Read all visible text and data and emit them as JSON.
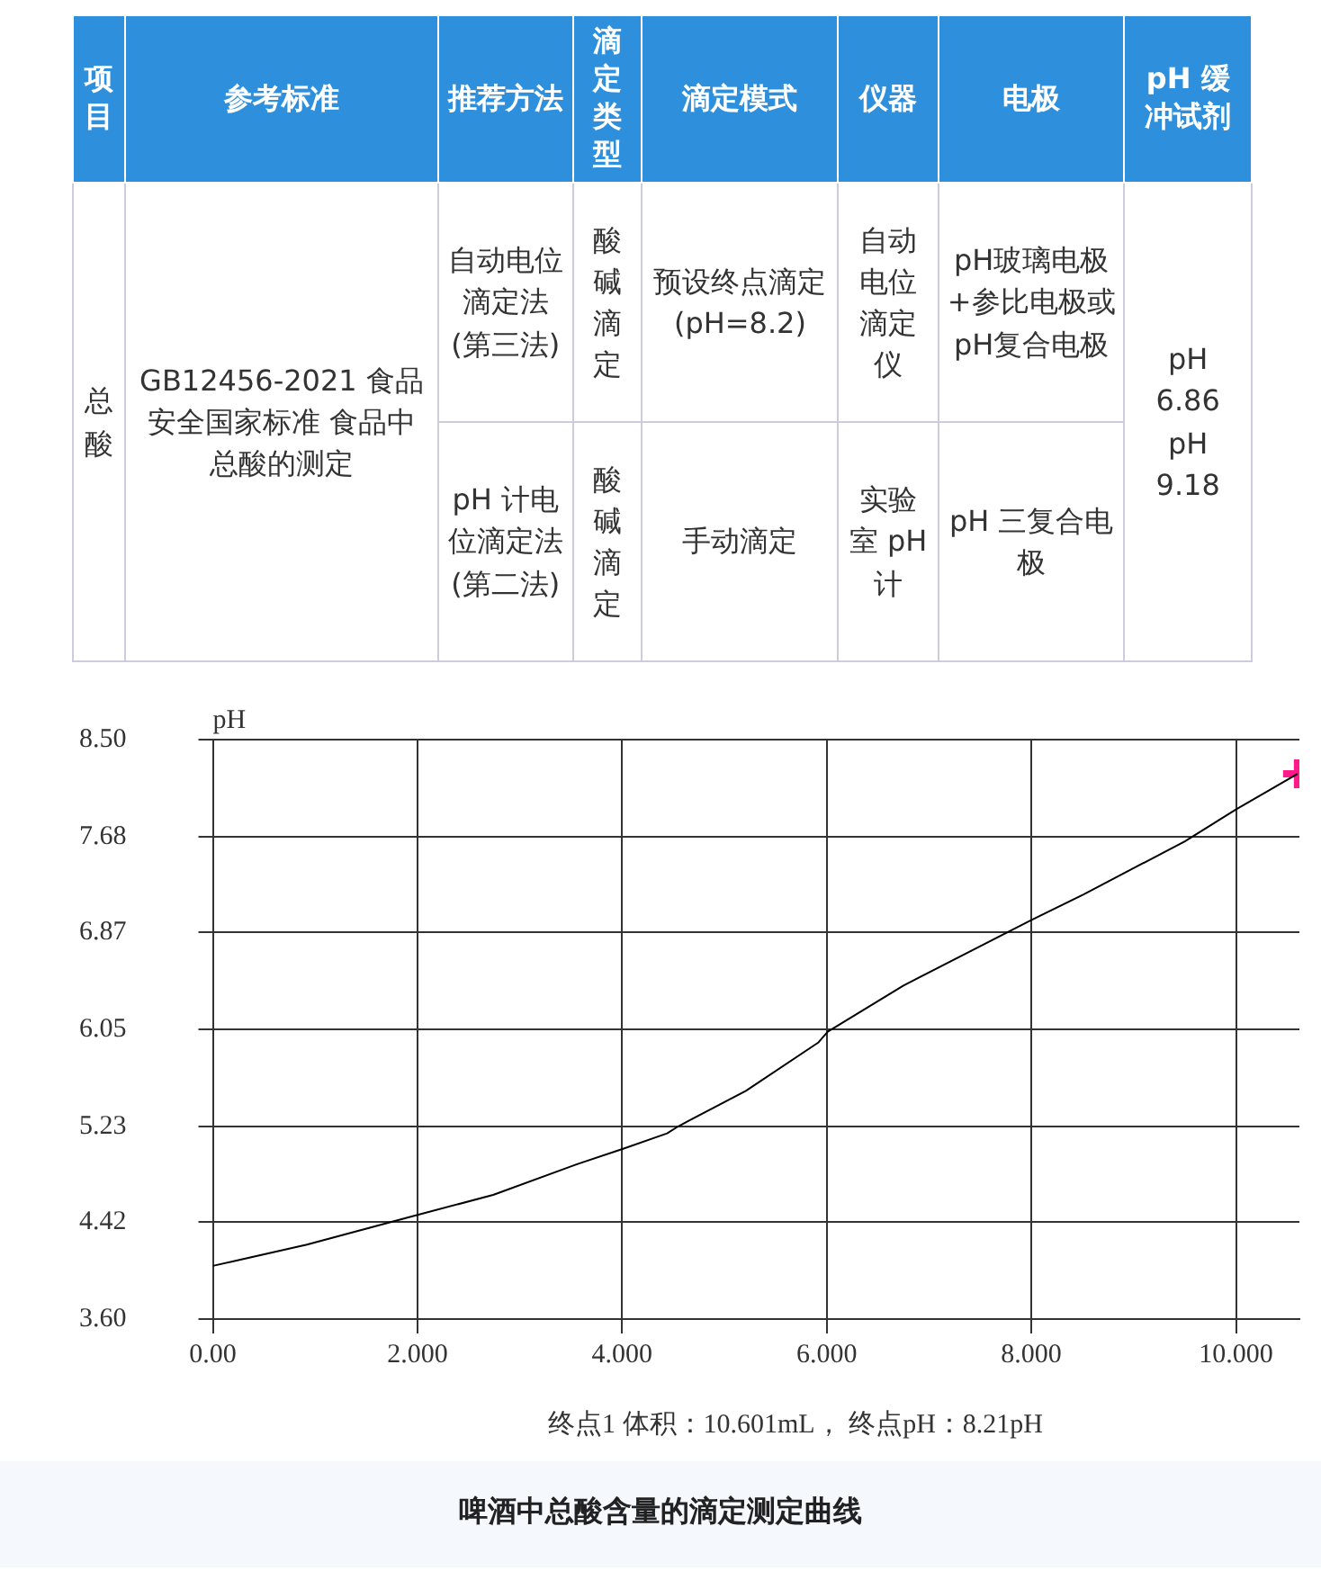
{
  "chart_data": [
    {
      "type": "other",
      "categories": [
        "项目",
        "参考标准",
        "推荐方法",
        "滴定类型",
        "滴定模式",
        "仪器",
        "电极",
        "pH 缓冲试剂"
      ],
      "cells": [
        [
          "总酸",
          "GB12456-2021 食品安全国家标准 食品中总酸的测定",
          "自动电位滴定法(第三法)",
          "酸碱滴定",
          "预设终点滴定(pH=8.2)",
          "自动电位滴定仪",
          "pH玻璃电极+参比电极或pH复合电极",
          "pH 6.86 pH 9.18"
        ],
        [
          null,
          null,
          "pH 计电位滴定法(第二法)",
          "酸碱滴定",
          "手动滴定",
          "实验室 pH 计",
          "pH 三复合电极",
          null
        ]
      ]
    },
    {
      "type": "line",
      "title": "啤酒中总酸含量的滴定测定曲线",
      "ylabel": "pH",
      "annotations": [
        "终点1 体积：10.601mL， 终点pH：8.21pH"
      ],
      "xlim": [
        0,
        10.62
      ],
      "xticks": [
        {
          "value": 0,
          "label": "0.00"
        },
        {
          "value": 2,
          "label": "2.000"
        },
        {
          "value": 4,
          "label": "4.000"
        },
        {
          "value": 6,
          "label": "6.000"
        },
        {
          "value": 8,
          "label": "8.000"
        },
        {
          "value": 10,
          "label": "10.000"
        }
      ],
      "ylim": [
        3.6,
        8.5
      ],
      "yticks": [
        {
          "value": 3.6,
          "label": "3.60"
        },
        4.42,
        5.23,
        6.05,
        6.87,
        7.68,
        {
          "value": 8.5,
          "label": "8.50"
        }
      ],
      "grid": true,
      "legend": false,
      "series": [
        {
          "type": "line",
          "color": "#000000",
          "marker": "none",
          "x": [
            0,
            0.26,
            0.92,
            1.91,
            2.74,
            3.56,
            4.01,
            4.44,
            4.55,
            5.21,
            5.92,
            6.01,
            6.75,
            7.99,
            8.51,
            9.5,
            10.0,
            10.601
          ],
          "values": [
            4.05,
            4.1,
            4.23,
            4.46,
            4.65,
            4.91,
            5.04,
            5.17,
            5.23,
            5.53,
            5.94,
            6.03,
            6.42,
            6.97,
            7.19,
            7.64,
            7.91,
            8.21
          ]
        },
        {
          "type": "scatter",
          "color": "#ff1a8c",
          "marker": "cross",
          "x": [
            10.601
          ],
          "values": [
            8.21
          ]
        }
      ]
    }
  ]
}
